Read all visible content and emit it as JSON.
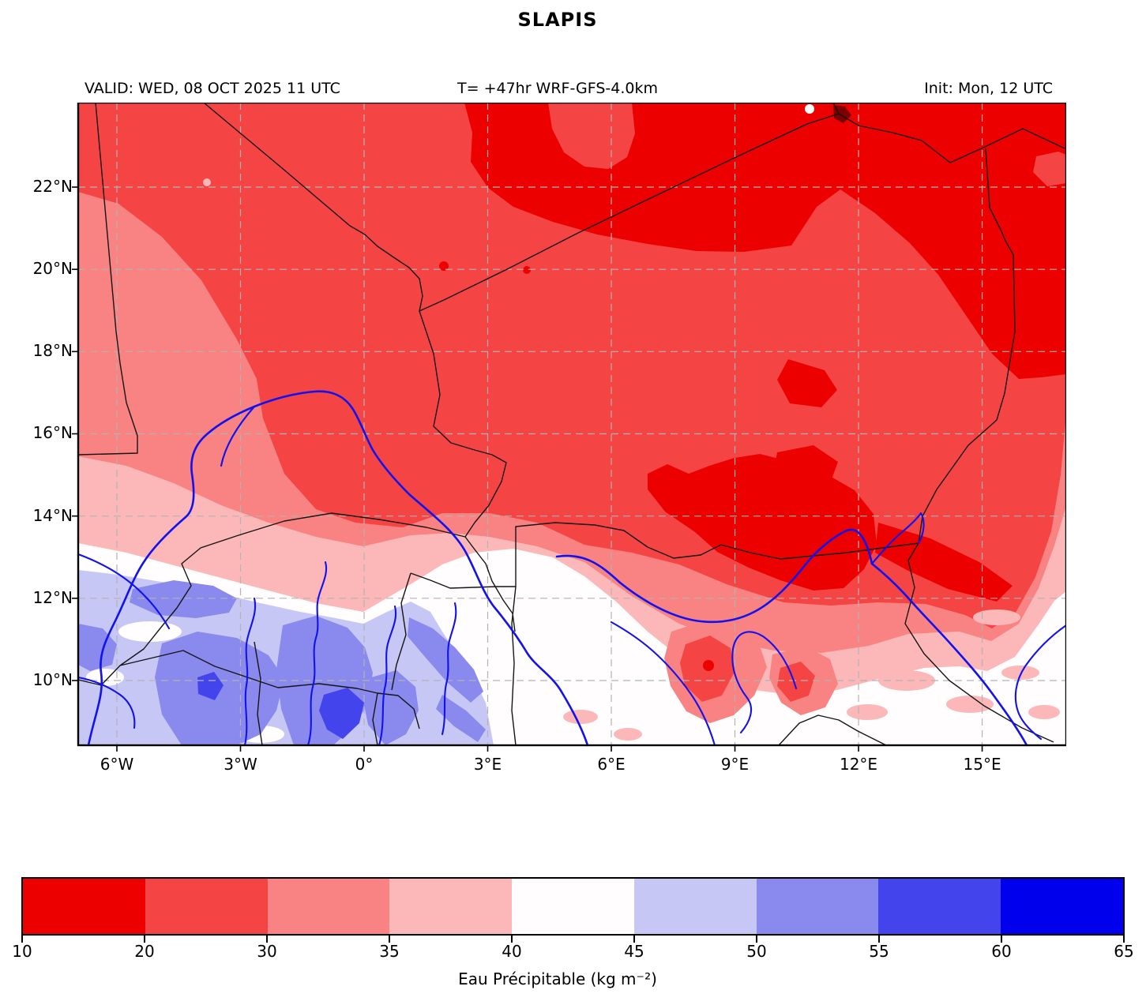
{
  "title": "SLAPIS",
  "header": {
    "valid": "VALID: WED, 08 OCT 2025 11 UTC",
    "model": "T= +47hr WRF-GFS-4.0km",
    "init": "Init: Mon, 12 UTC"
  },
  "map": {
    "lon_ticks": [
      {
        "label": "6°W",
        "lon": -6
      },
      {
        "label": "3°W",
        "lon": -3
      },
      {
        "label": "0°",
        "lon": 0
      },
      {
        "label": "3°E",
        "lon": 3
      },
      {
        "label": "6°E",
        "lon": 6
      },
      {
        "label": "9°E",
        "lon": 9
      },
      {
        "label": "12°E",
        "lon": 12
      },
      {
        "label": "15°E",
        "lon": 15
      }
    ],
    "lat_ticks": [
      {
        "label": "22°N",
        "lat": 22
      },
      {
        "label": "20°N",
        "lat": 20
      },
      {
        "label": "18°N",
        "lat": 18
      },
      {
        "label": "16°N",
        "lat": 16
      },
      {
        "label": "14°N",
        "lat": 14
      },
      {
        "label": "12°N",
        "lat": 12
      },
      {
        "label": "10°N",
        "lat": 10
      }
    ],
    "grid_color": "#b3b3b3",
    "border_color": "#151515",
    "river_color": "#1212ee",
    "frame_color": "#000000",
    "extra_colors": {
      "dark_speck": "#7d0000"
    }
  },
  "colorbar": {
    "caption": "Eau Précipitable (kg m⁻²)",
    "levels": [
      10,
      20,
      30,
      35,
      40,
      45,
      50,
      55,
      60,
      65
    ],
    "colors": [
      "#ed0000",
      "#f54444",
      "#f98282",
      "#fcb8b8",
      "#fffdfd",
      "#c7c7f5",
      "#8989ee",
      "#4444ec",
      "#0000ec"
    ]
  },
  "field_regions": [
    {
      "zone": "Sahara — entire north and northeast of domain",
      "kg_m2": "10–20"
    },
    {
      "zone": "Sahel band, ~15–20°N in west widening eastward",
      "kg_m2": "20–30"
    },
    {
      "zone": "Band near 14–16°N plus far-west lobe 18–21°N",
      "kg_m2": "30–35"
    },
    {
      "zone": "Band near 13–14.5°N and scattered southeast patches",
      "kg_m2": "35–40"
    },
    {
      "zone": "Band near 11–13°N and the southeast corner",
      "kg_m2": "40–45"
    },
    {
      "zone": "Southwest quadrant south of ~12.5°N, west of ~4°E",
      "kg_m2": "45–50"
    },
    {
      "zone": "Pockets within the southwest moist region",
      "kg_m2": "50–55"
    },
    {
      "zone": "Small cores in the far southwest",
      "kg_m2": "55–60"
    }
  ]
}
